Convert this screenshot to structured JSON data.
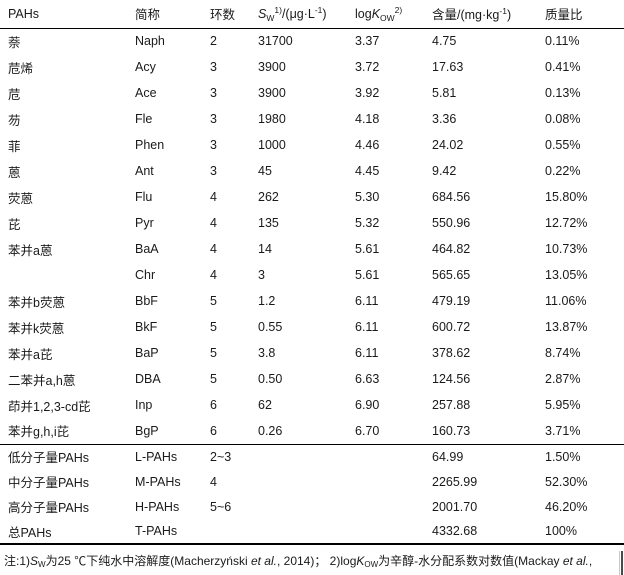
{
  "table": {
    "columns": {
      "pahs": "PAHs",
      "abbr": "简称",
      "rings": "环数",
      "sw": {
        "sym": "S",
        "sub": "W",
        "sup": "1)",
        "unit_pre": "/(μg·L",
        "unit_exp": "-1",
        "unit_post": ")"
      },
      "logkow": {
        "log": "log",
        "sym": "K",
        "sub": "OW",
        "sup": "2)"
      },
      "content": {
        "pre": "含量/(mg·kg",
        "exp": "-1",
        "post": ")"
      },
      "ratio": "质量比"
    },
    "rows": [
      {
        "name": "萘",
        "abbr": "Naph",
        "rings": "2",
        "sw": "31700",
        "logkow": "3.37",
        "content": "4.75",
        "ratio": "0.11%"
      },
      {
        "name": "苊烯",
        "abbr": "Acy",
        "rings": "3",
        "sw": "3900",
        "logkow": "3.72",
        "content": "17.63",
        "ratio": "0.41%"
      },
      {
        "name": "苊",
        "abbr": "Ace",
        "rings": "3",
        "sw": "3900",
        "logkow": "3.92",
        "content": "5.81",
        "ratio": "0.13%"
      },
      {
        "name": "芴",
        "abbr": "Fle",
        "rings": "3",
        "sw": "1980",
        "logkow": "4.18",
        "content": "3.36",
        "ratio": "0.08%"
      },
      {
        "name": "菲",
        "abbr": "Phen",
        "rings": "3",
        "sw": "1000",
        "logkow": "4.46",
        "content": "24.02",
        "ratio": "0.55%"
      },
      {
        "name": "蒽",
        "abbr": "Ant",
        "rings": "3",
        "sw": "45",
        "logkow": "4.45",
        "content": "9.42",
        "ratio": "0.22%"
      },
      {
        "name": "荧蒽",
        "abbr": "Flu",
        "rings": "4",
        "sw": "262",
        "logkow": "5.30",
        "content": "684.56",
        "ratio": "15.80%"
      },
      {
        "name": "芘",
        "abbr": "Pyr",
        "rings": "4",
        "sw": "135",
        "logkow": "5.32",
        "content": "550.96",
        "ratio": "12.72%"
      },
      {
        "name": "苯并a蒽",
        "abbr": "BaA",
        "rings": "4",
        "sw": "14",
        "logkow": "5.61",
        "content": "464.82",
        "ratio": "10.73%"
      },
      {
        "name": "",
        "abbr": "Chr",
        "rings": "4",
        "sw": "3",
        "logkow": "5.61",
        "content": "565.65",
        "ratio": "13.05%"
      },
      {
        "name": "苯并b荧蒽",
        "abbr": "BbF",
        "rings": "5",
        "sw": "1.2",
        "logkow": "6.11",
        "content": "479.19",
        "ratio": "11.06%"
      },
      {
        "name": "苯并k荧蒽",
        "abbr": "BkF",
        "rings": "5",
        "sw": "0.55",
        "logkow": "6.11",
        "content": "600.72",
        "ratio": "13.87%"
      },
      {
        "name": "苯并a芘",
        "abbr": "BaP",
        "rings": "5",
        "sw": "3.8",
        "logkow": "6.11",
        "content": "378.62",
        "ratio": "8.74%"
      },
      {
        "name": "二苯并a,h蒽",
        "abbr": "DBA",
        "rings": "5",
        "sw": "0.50",
        "logkow": "6.63",
        "content": "124.56",
        "ratio": "2.87%"
      },
      {
        "name": "茚并1,2,3-cd芘",
        "abbr": "Inp",
        "rings": "6",
        "sw": "62",
        "logkow": "6.90",
        "content": "257.88",
        "ratio": "5.95%"
      },
      {
        "name": "苯并g,h,i芘",
        "abbr": "BgP",
        "rings": "6",
        "sw": "0.26",
        "logkow": "6.70",
        "content": "160.73",
        "ratio": "3.71%"
      }
    ],
    "summary_rows": [
      {
        "name": "低分子量PAHs",
        "abbr": "L-PAHs",
        "rings": "2~3",
        "sw": "",
        "logkow": "",
        "content": "64.99",
        "ratio": "1.50%"
      },
      {
        "name": "中分子量PAHs",
        "abbr": "M-PAHs",
        "rings": "4",
        "sw": "",
        "logkow": "",
        "content": "2265.99",
        "ratio": "52.30%"
      },
      {
        "name": "高分子量PAHs",
        "abbr": "H-PAHs",
        "rings": "5~6",
        "sw": "",
        "logkow": "",
        "content": "2001.70",
        "ratio": "46.20%"
      },
      {
        "name": "总PAHs",
        "abbr": "T-PAHs",
        "rings": "",
        "sw": "",
        "logkow": "",
        "content": "4332.68",
        "ratio": "100%"
      }
    ],
    "note": {
      "prefix": "注:1)",
      "s_sym": "S",
      "s_sub": "W",
      "seg1": "为25 ℃下纯水中溶解度(Macherzyński ",
      "etal1": "et al.",
      "seg2": ", 2014)； 2)log",
      "k_sym": "K",
      "k_sub": "OW",
      "seg3": "为辛醇-水分配系数对数值(Mackay ",
      "etal2": "et al.",
      "seg4": ","
    }
  }
}
